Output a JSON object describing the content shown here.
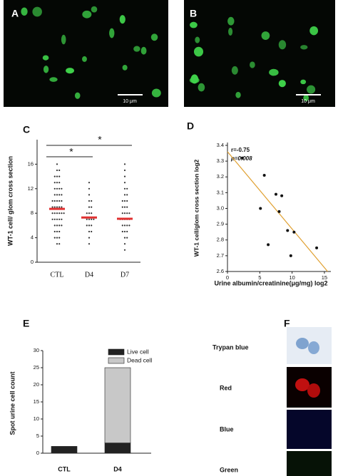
{
  "panels": {
    "A": {
      "letter": "A",
      "scale_bar": "10 μm"
    },
    "B": {
      "letter": "B",
      "scale_bar": "10 μm"
    },
    "F": {
      "letter": "F",
      "rows": [
        "Trypan blue",
        "Red",
        "Blue",
        "Green"
      ]
    }
  },
  "chart_data": [
    {
      "type": "dot",
      "panel_label": "C",
      "y_label": "WT-1 cell/ glom cross section",
      "categories": [
        "CTL",
        "D4",
        "D7"
      ],
      "points": [
        [
          16,
          15,
          15,
          14,
          14,
          14,
          13,
          13,
          13,
          12,
          12,
          12,
          12,
          11,
          11,
          11,
          11,
          10,
          10,
          10,
          10,
          10,
          9,
          9,
          9,
          9,
          9,
          8,
          8,
          8,
          8,
          8,
          8,
          7,
          7,
          7,
          7,
          7,
          6,
          6,
          6,
          6,
          5,
          5,
          5,
          4,
          4,
          4,
          3,
          3
        ],
        [
          13,
          12,
          11,
          10,
          10,
          9,
          9,
          8,
          8,
          8,
          7,
          7,
          7,
          7,
          6,
          6,
          6,
          5,
          5,
          4,
          3
        ],
        [
          16,
          15,
          14,
          13,
          12,
          12,
          11,
          11,
          10,
          10,
          10,
          9,
          9,
          9,
          8,
          8,
          8,
          8,
          7,
          7,
          7,
          7,
          7,
          6,
          6,
          6,
          6,
          5,
          5,
          5,
          4,
          4,
          3,
          2
        ]
      ],
      "means": [
        8.7,
        7.3,
        7.1
      ],
      "color": "#333333",
      "mean_color": "#e03030",
      "annotations": [
        "*",
        "*"
      ],
      "ylim": [
        0,
        20
      ],
      "yticks": [
        0,
        4,
        8,
        12,
        16
      ]
    },
    {
      "type": "scatter",
      "panel_label": "D",
      "y_label": "WT-1 cell/glom cross section log2",
      "x_label": "Urine albumin/creatinine(μg/mg) log2",
      "stats": [
        "r=-0.75",
        "p=0.008"
      ],
      "x": [
        2.3,
        5.7,
        5.1,
        6.3,
        7.5,
        8.4,
        8.0,
        9.3,
        9.8,
        10.3,
        13.8
      ],
      "values": [
        3.32,
        3.21,
        3.0,
        2.77,
        3.09,
        3.08,
        2.98,
        2.86,
        2.7,
        2.85,
        2.75
      ],
      "color": "#111111",
      "fit": {
        "x": [
          0,
          15.5
        ],
        "values": [
          3.36,
          2.6
        ],
        "color": "#e0a030"
      },
      "xlim": [
        0,
        16
      ],
      "xticks": [
        0,
        5,
        10,
        15
      ],
      "ylim": [
        2.6,
        3.4
      ],
      "yticks": [
        2.6,
        2.7,
        2.8,
        2.9,
        {
          "value": 3,
          "label": "3.0"
        },
        3.1,
        3.2,
        3.3,
        3.4
      ]
    },
    {
      "type": "bar",
      "stacked": true,
      "panel_label": "E",
      "y_label": "Spot urine cell count",
      "categories": [
        "CTL",
        "D4"
      ],
      "series": [
        {
          "name": "Live cell",
          "color": "#222222",
          "values": [
            2,
            3
          ]
        },
        {
          "name": "Dead cell",
          "color": "#c8c8c8",
          "values": [
            0,
            22
          ]
        }
      ],
      "ylim": [
        0,
        30
      ],
      "yticks": [
        0,
        5,
        10,
        15,
        20,
        25,
        30
      ]
    }
  ]
}
